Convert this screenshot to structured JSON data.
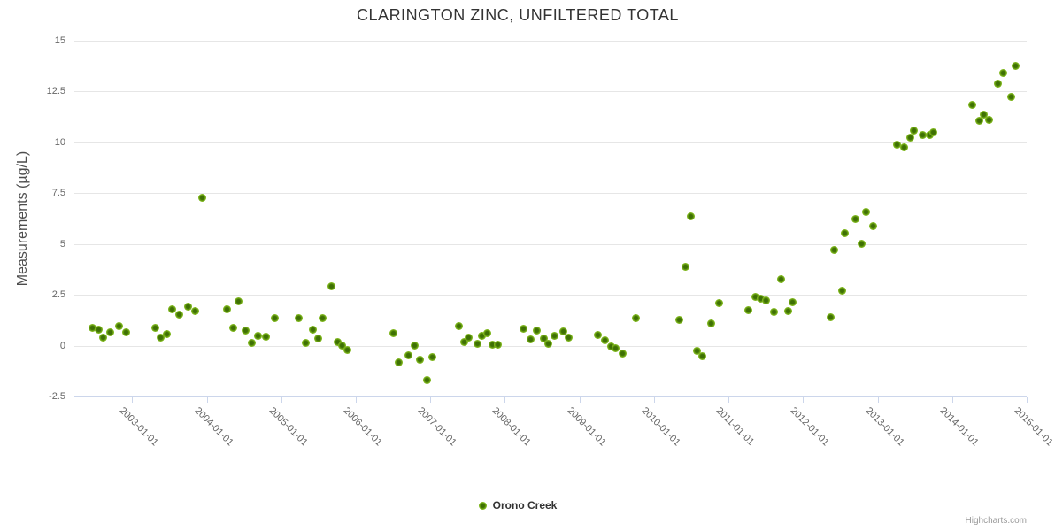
{
  "chart": {
    "credits_label": "Highcharts.com"
  },
  "colors": {
    "series_green_outer": "#94ce46",
    "series_green_mid": "#7fb71c",
    "series_green_core": "#3e7004",
    "grid": "#e6e6e6",
    "axis_line": "#ccd6eb",
    "title_text": "#333333",
    "axis_label_text": "#666666",
    "credits_text": "#999999"
  },
  "chart_data": {
    "type": "scatter",
    "title": "CLARINGTON ZINC, UNFILTERED TOTAL",
    "xlabel": "",
    "ylabel": "Measurements (µg/L)",
    "grid": true,
    "legend_position": "bottom-center",
    "xlim": [
      2002.225,
      2015.0
    ],
    "ylim": [
      -2.5,
      15
    ],
    "y_ticks": [
      15,
      12.5,
      10,
      7.5,
      5,
      2.5,
      0,
      -2.5
    ],
    "x_ticks": [
      {
        "value": 2003,
        "label": "2003-01-01"
      },
      {
        "value": 2004,
        "label": "2004-01-01"
      },
      {
        "value": 2005,
        "label": "2005-01-01"
      },
      {
        "value": 2006,
        "label": "2006-01-01"
      },
      {
        "value": 2007,
        "label": "2007-01-01"
      },
      {
        "value": 2008,
        "label": "2008-01-01"
      },
      {
        "value": 2009,
        "label": "2009-01-01"
      },
      {
        "value": 2010,
        "label": "2010-01-01"
      },
      {
        "value": 2011,
        "label": "2011-01-01"
      },
      {
        "value": 2012,
        "label": "2012-01-01"
      },
      {
        "value": 2013,
        "label": "2013-01-01"
      },
      {
        "value": 2014,
        "label": "2014-01-01"
      },
      {
        "value": 2015,
        "label": "2015-01-01"
      }
    ],
    "series": [
      {
        "name": "Orono Creek",
        "points": [
          [
            2002.47,
            0.86
          ],
          [
            2002.55,
            0.77
          ],
          [
            2002.61,
            0.38
          ],
          [
            2002.71,
            0.67
          ],
          [
            2002.82,
            0.97
          ],
          [
            2002.92,
            0.67
          ],
          [
            2003.31,
            0.86
          ],
          [
            2003.38,
            0.38
          ],
          [
            2003.46,
            0.57
          ],
          [
            2003.54,
            1.79
          ],
          [
            2003.63,
            1.54
          ],
          [
            2003.75,
            1.93
          ],
          [
            2003.85,
            1.69
          ],
          [
            2003.94,
            7.27
          ],
          [
            2004.27,
            1.79
          ],
          [
            2004.36,
            0.85
          ],
          [
            2004.43,
            2.17
          ],
          [
            2004.52,
            0.75
          ],
          [
            2004.6,
            0.14
          ],
          [
            2004.69,
            0.46
          ],
          [
            2004.8,
            0.43
          ],
          [
            2004.91,
            1.36
          ],
          [
            2005.24,
            1.33
          ],
          [
            2005.33,
            0.14
          ],
          [
            2005.42,
            0.77
          ],
          [
            2005.49,
            0.34
          ],
          [
            2005.56,
            1.36
          ],
          [
            2005.67,
            2.92
          ],
          [
            2005.76,
            0.17
          ],
          [
            2005.82,
            0.02
          ],
          [
            2005.89,
            -0.2
          ],
          [
            2006.5,
            0.6
          ],
          [
            2006.58,
            -0.83
          ],
          [
            2006.71,
            -0.49
          ],
          [
            2006.79,
            0.02
          ],
          [
            2006.86,
            -0.7
          ],
          [
            2006.96,
            -1.69
          ],
          [
            2007.03,
            -0.56
          ],
          [
            2007.38,
            0.97
          ],
          [
            2007.45,
            0.17
          ],
          [
            2007.52,
            0.38
          ],
          [
            2007.63,
            0.09
          ],
          [
            2007.69,
            0.49
          ],
          [
            2007.76,
            0.6
          ],
          [
            2007.84,
            0.05
          ],
          [
            2007.91,
            0.05
          ],
          [
            2008.25,
            0.82
          ],
          [
            2008.35,
            0.31
          ],
          [
            2008.43,
            0.75
          ],
          [
            2008.52,
            0.34
          ],
          [
            2008.58,
            0.09
          ],
          [
            2008.66,
            0.46
          ],
          [
            2008.79,
            0.7
          ],
          [
            2008.86,
            0.38
          ],
          [
            2009.25,
            0.53
          ],
          [
            2009.34,
            0.24
          ],
          [
            2009.42,
            -0.05
          ],
          [
            2009.49,
            -0.15
          ],
          [
            2009.58,
            -0.41
          ],
          [
            2009.76,
            1.36
          ],
          [
            2010.34,
            1.25
          ],
          [
            2010.42,
            3.87
          ],
          [
            2010.5,
            6.33
          ],
          [
            2010.58,
            -0.27
          ],
          [
            2010.65,
            -0.53
          ],
          [
            2010.77,
            1.08
          ],
          [
            2010.88,
            2.08
          ],
          [
            2011.27,
            1.72
          ],
          [
            2011.36,
            2.38
          ],
          [
            2011.43,
            2.3
          ],
          [
            2011.5,
            2.2
          ],
          [
            2011.61,
            1.64
          ],
          [
            2011.71,
            3.28
          ],
          [
            2011.8,
            1.69
          ],
          [
            2011.86,
            2.15
          ],
          [
            2012.37,
            1.37
          ],
          [
            2012.42,
            4.69
          ],
          [
            2012.53,
            2.7
          ],
          [
            2012.56,
            5.53
          ],
          [
            2012.7,
            6.23
          ],
          [
            2012.79,
            4.98
          ],
          [
            2012.84,
            6.55
          ],
          [
            2012.94,
            5.89
          ],
          [
            2013.26,
            9.85
          ],
          [
            2013.36,
            9.73
          ],
          [
            2013.44,
            10.21
          ],
          [
            2013.49,
            10.57
          ],
          [
            2013.6,
            10.36
          ],
          [
            2013.7,
            10.36
          ],
          [
            2013.75,
            10.46
          ],
          [
            2014.27,
            11.83
          ],
          [
            2014.36,
            11.03
          ],
          [
            2014.42,
            11.33
          ],
          [
            2014.49,
            11.07
          ],
          [
            2014.62,
            12.85
          ],
          [
            2014.69,
            13.38
          ],
          [
            2014.79,
            12.2
          ],
          [
            2014.85,
            13.72
          ]
        ]
      }
    ]
  }
}
